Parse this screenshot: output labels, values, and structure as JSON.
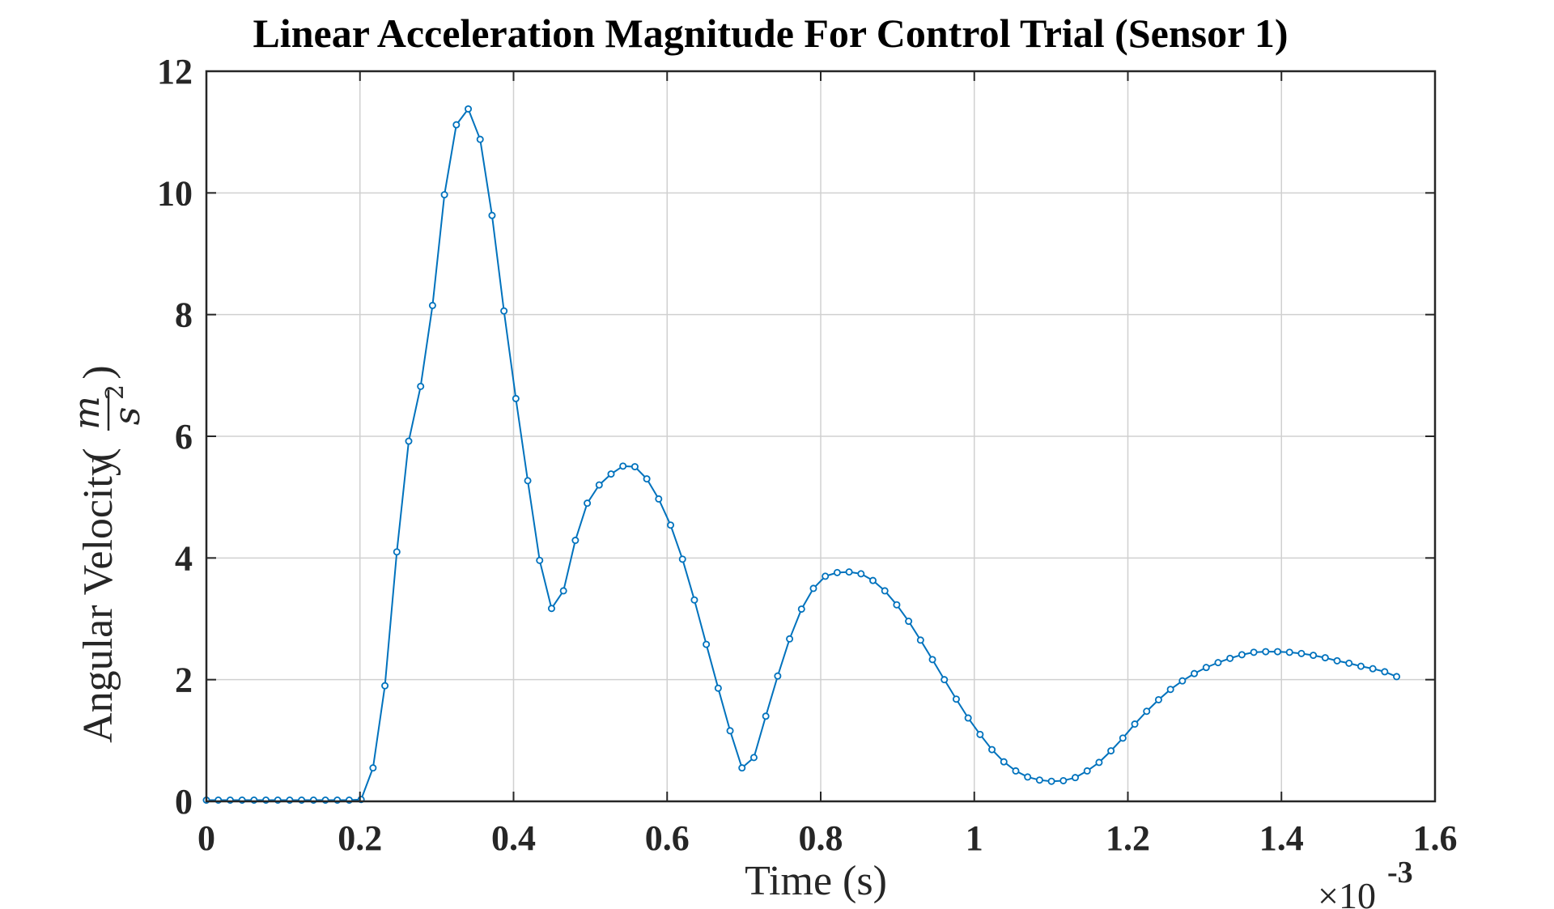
{
  "chart_data": {
    "type": "line",
    "title": "Linear Acceleration Magnitude For Control Trial (Sensor 1)",
    "xlabel": "Time (s)",
    "ylabel": "Angular Velocity",
    "ylabel_unit_numerator": "m",
    "ylabel_unit_denominator": "s",
    "ylabel_unit_exponent": "2",
    "x_exponent_base": "×10",
    "x_exponent_power": "-3",
    "xlim": [
      0,
      1.6
    ],
    "ylim": [
      0,
      12
    ],
    "x_ticks": [
      0,
      0.2,
      0.4,
      0.6,
      0.8,
      1,
      1.2,
      1.4,
      1.6
    ],
    "x_tick_labels": [
      "0",
      "0.2",
      "0.4",
      "0.6",
      "0.8",
      "1",
      "1.2",
      "1.4",
      "1.6"
    ],
    "y_ticks": [
      0,
      2,
      4,
      6,
      8,
      10,
      12
    ],
    "y_tick_labels": [
      "0",
      "2",
      "4",
      "6",
      "8",
      "10",
      "12"
    ],
    "grid": true,
    "line_color": "#0072BD",
    "marker": "circle",
    "series": [
      {
        "x": [
          0,
          0.0155,
          0.031,
          0.0465,
          0.062,
          0.0775,
          0.093,
          0.1085,
          0.124,
          0.1395,
          0.155,
          0.1705,
          0.186,
          0.2015,
          0.217,
          0.2325,
          0.248,
          0.2635,
          0.279,
          0.2945,
          0.31,
          0.3255,
          0.341,
          0.3565,
          0.372,
          0.3875,
          0.403,
          0.4185,
          0.434,
          0.4495,
          0.465,
          0.4805,
          0.496,
          0.5115,
          0.527,
          0.5425,
          0.558,
          0.5735,
          0.589,
          0.6045,
          0.62,
          0.6355,
          0.651,
          0.6665,
          0.682,
          0.6975,
          0.713,
          0.7285,
          0.744,
          0.7595,
          0.775,
          0.7905,
          0.806,
          0.8215,
          0.837,
          0.8525,
          0.868,
          0.8835,
          0.899,
          0.9145,
          0.93,
          0.9455,
          0.961,
          0.9765,
          0.992,
          1.0075,
          1.023,
          1.0385,
          1.054,
          1.0695,
          1.085,
          1.1005,
          1.116,
          1.1315,
          1.147,
          1.1625,
          1.178,
          1.1935,
          1.209,
          1.2245,
          1.24,
          1.2555,
          1.271,
          1.2865,
          1.302,
          1.3175,
          1.333,
          1.3485,
          1.364,
          1.3795,
          1.395,
          1.4105,
          1.426,
          1.4415,
          1.457,
          1.4725,
          1.488,
          1.5035,
          1.519,
          1.5345,
          1.55
        ],
        "y": [
          0.02,
          0.02,
          0.02,
          0.02,
          0.02,
          0.02,
          0.02,
          0.02,
          0.02,
          0.02,
          0.02,
          0.02,
          0.02,
          0.03,
          0.55,
          1.9,
          4.1,
          5.92,
          6.82,
          8.15,
          9.97,
          11.12,
          11.38,
          10.88,
          9.63,
          8.06,
          6.62,
          5.27,
          3.96,
          3.17,
          3.46,
          4.29,
          4.9,
          5.2,
          5.38,
          5.51,
          5.5,
          5.3,
          4.97,
          4.54,
          3.98,
          3.31,
          2.58,
          1.86,
          1.16,
          0.55,
          0.72,
          1.4,
          2.06,
          2.67,
          3.16,
          3.5,
          3.7,
          3.76,
          3.77,
          3.74,
          3.63,
          3.46,
          3.23,
          2.96,
          2.65,
          2.33,
          2.0,
          1.68,
          1.37,
          1.1,
          0.85,
          0.65,
          0.5,
          0.4,
          0.35,
          0.33,
          0.34,
          0.39,
          0.5,
          0.64,
          0.83,
          1.04,
          1.27,
          1.48,
          1.67,
          1.84,
          1.98,
          2.1,
          2.2,
          2.28,
          2.35,
          2.41,
          2.45,
          2.46,
          2.46,
          2.45,
          2.43,
          2.4,
          2.36,
          2.31,
          2.27,
          2.22,
          2.18,
          2.13,
          2.05
        ]
      }
    ]
  }
}
